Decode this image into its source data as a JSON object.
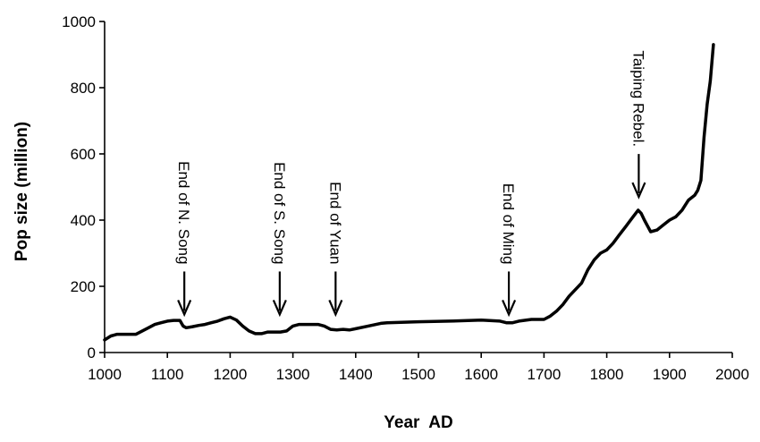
{
  "chart_data": {
    "type": "line",
    "title": "",
    "xlabel": "Year  AD",
    "ylabel": "Pop size (million)",
    "xlim": [
      1000,
      2000
    ],
    "ylim": [
      0,
      1000
    ],
    "x_ticks": [
      1000,
      1100,
      1200,
      1300,
      1400,
      1500,
      1600,
      1700,
      1800,
      1900,
      2000
    ],
    "y_ticks": [
      0,
      200,
      400,
      600,
      800,
      1000
    ],
    "x_tick_labels": [
      "1000",
      "1100",
      "1200",
      "1300",
      "1400",
      "1500",
      "1600",
      "1700",
      "1800",
      "1900",
      "2000"
    ],
    "y_tick_labels": [
      "0",
      "200",
      "400",
      "600",
      "800",
      "1000"
    ],
    "grid": false,
    "line_color": "#000000",
    "series": [
      {
        "x": [
          1000,
          1010,
          1020,
          1030,
          1040,
          1050,
          1060,
          1070,
          1080,
          1090,
          1100,
          1110,
          1120,
          1125,
          1130,
          1140,
          1150,
          1160,
          1170,
          1180,
          1190,
          1200,
          1210,
          1220,
          1230,
          1240,
          1250,
          1260,
          1270,
          1280,
          1290,
          1300,
          1310,
          1320,
          1330,
          1340,
          1350,
          1360,
          1370,
          1380,
          1390,
          1400,
          1420,
          1440,
          1450,
          1500,
          1550,
          1600,
          1630,
          1640,
          1650,
          1660,
          1680,
          1700,
          1710,
          1720,
          1730,
          1740,
          1750,
          1760,
          1770,
          1780,
          1790,
          1800,
          1810,
          1820,
          1830,
          1840,
          1850,
          1855,
          1860,
          1870,
          1880,
          1890,
          1900,
          1910,
          1920,
          1930,
          1940,
          1945,
          1950,
          1955,
          1960,
          1965,
          1970
        ],
        "y": [
          38,
          50,
          55,
          55,
          55,
          55,
          65,
          75,
          85,
          90,
          95,
          97,
          97,
          80,
          75,
          78,
          82,
          85,
          90,
          95,
          102,
          107,
          98,
          80,
          65,
          57,
          57,
          62,
          62,
          62,
          65,
          80,
          85,
          85,
          85,
          85,
          80,
          70,
          68,
          70,
          68,
          72,
          80,
          88,
          90,
          93,
          95,
          98,
          95,
          90,
          90,
          95,
          100,
          100,
          110,
          125,
          145,
          170,
          190,
          210,
          250,
          280,
          300,
          310,
          330,
          355,
          380,
          405,
          430,
          420,
          400,
          365,
          370,
          385,
          400,
          410,
          430,
          460,
          475,
          490,
          520,
          650,
          750,
          820,
          930
        ]
      }
    ],
    "annotations": [
      {
        "text_line1": "End of N. Song",
        "text_line2": "",
        "x": 1127,
        "y_arrow_tip": 115
      },
      {
        "text_line1": "End of S. Song",
        "text_line2": "",
        "x": 1279,
        "y_arrow_tip": 115
      },
      {
        "text_line1": "End of Yuan",
        "text_line2": "",
        "x": 1368,
        "y_arrow_tip": 115
      },
      {
        "text_line1": "End of Ming",
        "text_line2": "",
        "x": 1644,
        "y_arrow_tip": 115
      },
      {
        "text_line1": "Taiping Rebel.",
        "text_line2": "",
        "x": 1851,
        "y_arrow_tip": 470
      }
    ]
  }
}
